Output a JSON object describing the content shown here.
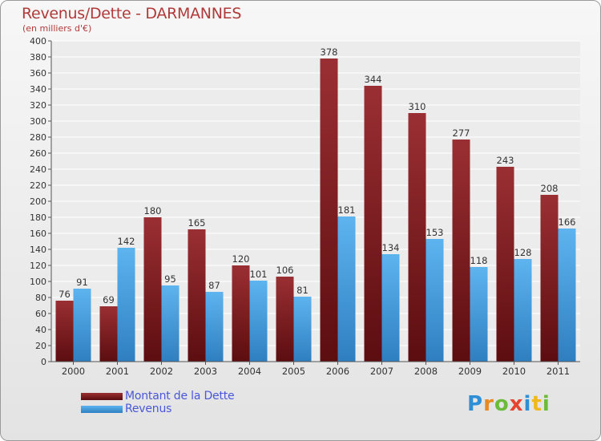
{
  "chart_data": {
    "type": "bar",
    "title": "Revenus/Dette - DARMANNES",
    "subtitle": "(en milliers d'€)",
    "categories": [
      "2000",
      "2001",
      "2002",
      "2003",
      "2004",
      "2005",
      "2006",
      "2007",
      "2008",
      "2009",
      "2010",
      "2011"
    ],
    "series": [
      {
        "name": "Montant de la Dette",
        "color": "#7a1f22",
        "values": [
          76,
          69,
          180,
          165,
          120,
          106,
          378,
          344,
          310,
          277,
          243,
          208
        ]
      },
      {
        "name": "Revenus",
        "color": "#4fa7e3",
        "values": [
          91,
          142,
          95,
          87,
          101,
          81,
          181,
          134,
          153,
          118,
          128,
          166
        ]
      }
    ],
    "ylim": [
      0,
      400
    ],
    "ytick_step": 20,
    "grid": true,
    "legend": "bottom-left"
  },
  "logo": {
    "letters": [
      "P",
      "r",
      "o",
      "x",
      "i",
      "t",
      "i"
    ],
    "colors": [
      "#2e8fd6",
      "#e98a1e",
      "#6dbb3b",
      "#e5452e",
      "#2e8fd6",
      "#f0b820",
      "#6dbb3b"
    ]
  }
}
